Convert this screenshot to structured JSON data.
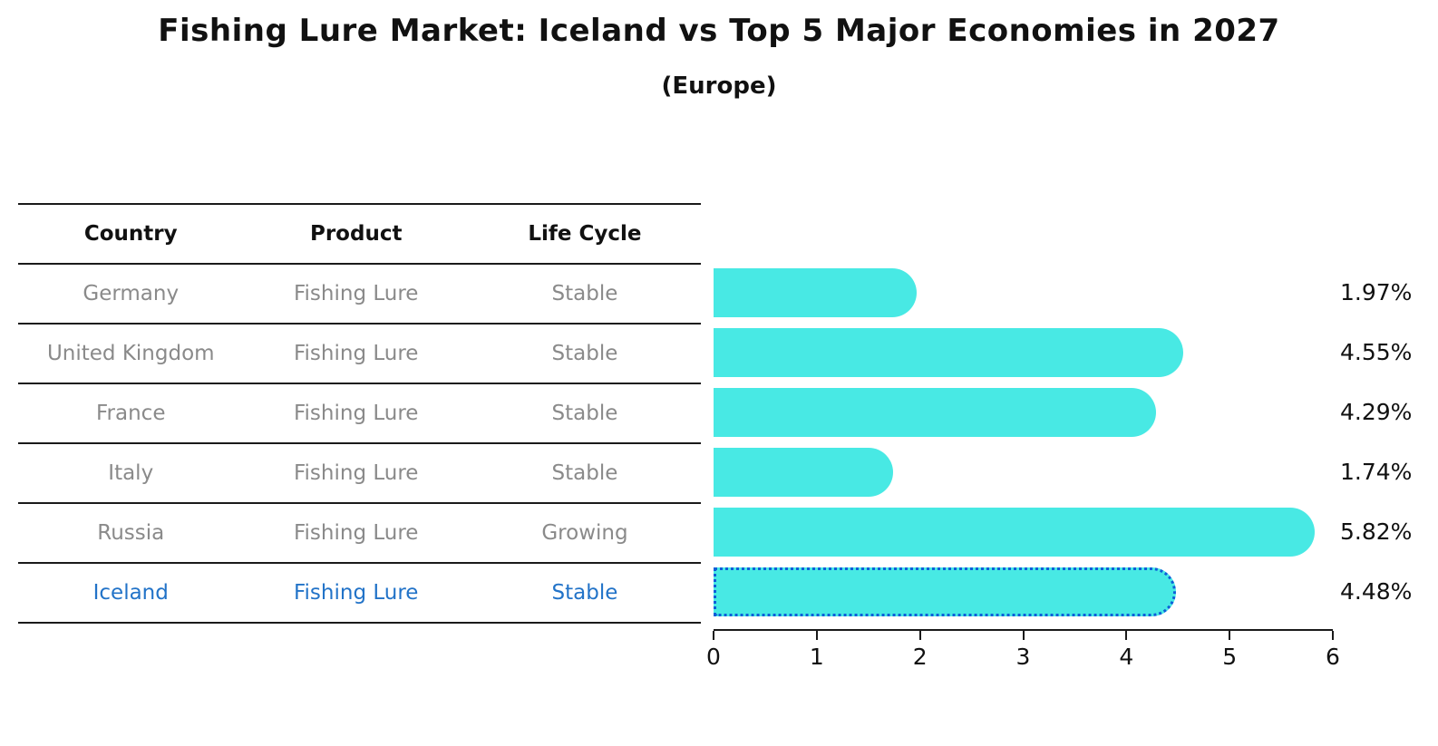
{
  "title": "Fishing Lure Market: Iceland vs Top 5 Major Economies in 2027",
  "subtitle": "(Europe)",
  "table": {
    "headers": [
      "Country",
      "Product",
      "Life Cycle"
    ],
    "rows": [
      {
        "country": "Germany",
        "product": "Fishing Lure",
        "life_cycle": "Stable"
      },
      {
        "country": "United Kingdom",
        "product": "Fishing Lure",
        "life_cycle": "Stable"
      },
      {
        "country": "France",
        "product": "Fishing Lure",
        "life_cycle": "Stable"
      },
      {
        "country": "Italy",
        "product": "Fishing Lure",
        "life_cycle": "Stable"
      },
      {
        "country": "Russia",
        "product": "Fishing Lure",
        "life_cycle": "Growing"
      },
      {
        "country": "Iceland",
        "product": "Fishing Lure",
        "life_cycle": "Stable"
      }
    ]
  },
  "chart_data": {
    "type": "bar",
    "orientation": "horizontal",
    "title": "Fishing Lure Market: Iceland vs Top 5 Major Economies in 2027",
    "subtitle": "(Europe)",
    "categories": [
      "Germany",
      "United Kingdom",
      "France",
      "Italy",
      "Russia",
      "Iceland"
    ],
    "values": [
      1.97,
      4.55,
      4.29,
      1.74,
      5.82,
      4.48
    ],
    "value_labels": [
      "1.97%",
      "4.55%",
      "4.29%",
      "1.74%",
      "5.82%",
      "4.48%"
    ],
    "xlim": [
      0,
      6
    ],
    "x_ticks": [
      "0",
      "1",
      "2",
      "3",
      "4",
      "5",
      "6"
    ],
    "grid": false,
    "legend": false,
    "highlight_index": 5,
    "bar_color": "#48E9E4",
    "highlight_bar_color": "#1E80F0",
    "highlight_border_color": "#0E5FD8",
    "highlight_text_color": "#2273C8"
  },
  "colors": {
    "background": "#ffffff",
    "text": "#111111",
    "muted_text": "#8a8a8a",
    "line": "#1a1a1a"
  }
}
